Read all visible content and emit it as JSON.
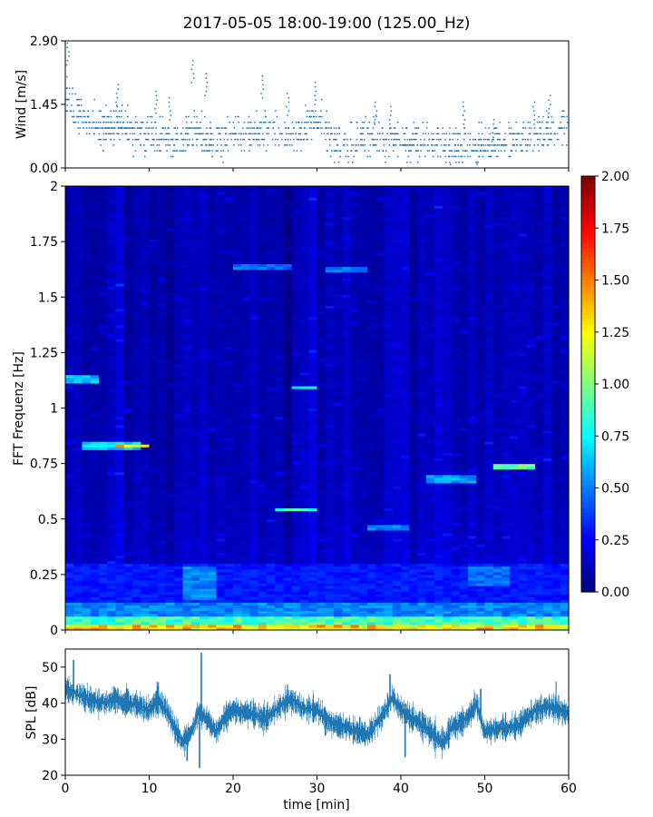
{
  "figure": {
    "title": "2017-05-05 18:00-19:00 (125.00_Hz)",
    "xlabel": "time [min]"
  },
  "chart_data": [
    {
      "type": "scatter",
      "panel": "wind",
      "title": "",
      "ylabel": "Wind [m/s]",
      "xlim": [
        0,
        60
      ],
      "ylim": [
        0,
        2.9
      ],
      "yticks": [
        "0.00",
        "1.45",
        "2.90"
      ],
      "xticks": [
        0,
        10,
        20,
        30,
        40,
        50,
        60
      ],
      "color": "#1f77b4",
      "trend": {
        "x": [
          0,
          1,
          2,
          4,
          6,
          8,
          10,
          12,
          14,
          15,
          16,
          18,
          20,
          22,
          24,
          26,
          28,
          30,
          31,
          32,
          34,
          36,
          38,
          40,
          42,
          44,
          46,
          48,
          50,
          52,
          54,
          56,
          58,
          60
        ],
        "y": [
          1.8,
          1.4,
          1.1,
          0.9,
          1.0,
          0.8,
          0.8,
          0.7,
          0.6,
          0.9,
          0.8,
          0.6,
          0.7,
          0.8,
          0.9,
          0.8,
          0.8,
          1.1,
          0.9,
          0.6,
          0.6,
          0.7,
          0.7,
          0.6,
          0.6,
          0.5,
          0.5,
          0.5,
          0.5,
          0.7,
          0.6,
          0.8,
          0.8,
          0.9
        ]
      },
      "gusts": [
        [
          0.3,
          2.85
        ],
        [
          15.2,
          2.45
        ],
        [
          16.8,
          2.15
        ],
        [
          23.5,
          2.1
        ],
        [
          29.8,
          1.95
        ],
        [
          6.2,
          1.9
        ],
        [
          10.8,
          1.75
        ],
        [
          12.5,
          1.6
        ],
        [
          26.5,
          1.7
        ],
        [
          37.0,
          1.5
        ],
        [
          38.7,
          1.4
        ],
        [
          57.7,
          1.65
        ],
        [
          55.8,
          1.5
        ],
        [
          47.5,
          1.5
        ],
        [
          51.0,
          1.1
        ]
      ]
    },
    {
      "type": "heatmap",
      "panel": "spectrogram",
      "title": "",
      "ylabel": "FFT Frequenz [Hz]",
      "xlim": [
        0,
        60
      ],
      "ylim": [
        0,
        2
      ],
      "yticks": [
        "0",
        "0.25",
        "0.5",
        "0.75",
        "1",
        "1.25",
        "1.5",
        "1.75",
        "2"
      ],
      "colormap": "jet",
      "clim": [
        0,
        2
      ],
      "colorbar_ticks": [
        "0.00",
        "0.25",
        "0.50",
        "0.75",
        "1.00",
        "1.25",
        "1.50",
        "1.75",
        "2.00"
      ],
      "features": [
        {
          "t0": 0,
          "t1": 60,
          "f0": 0.0,
          "f1": 0.02,
          "level": 1.4
        },
        {
          "t0": 0,
          "t1": 60,
          "f0": 0.02,
          "f1": 0.06,
          "level": 0.95
        },
        {
          "t0": 0,
          "t1": 60,
          "f0": 0.06,
          "f1": 0.12,
          "level": 0.55
        },
        {
          "t0": 0,
          "t1": 60,
          "f0": 0.12,
          "f1": 0.3,
          "level": 0.32
        },
        {
          "t0": 0,
          "t1": 4,
          "f0": 1.12,
          "f1": 1.14,
          "level": 0.65
        },
        {
          "t0": 2,
          "t1": 9,
          "f0": 0.82,
          "f1": 0.84,
          "level": 0.75
        },
        {
          "t0": 6,
          "t1": 9.5,
          "f0": 0.825,
          "f1": 0.835,
          "level": 1.5
        },
        {
          "t0": 25,
          "t1": 30,
          "f0": 0.54,
          "f1": 0.55,
          "level": 0.85
        },
        {
          "t0": 27,
          "t1": 30,
          "f0": 1.09,
          "f1": 1.1,
          "level": 0.75
        },
        {
          "t0": 51,
          "t1": 56,
          "f0": 0.73,
          "f1": 0.75,
          "level": 1.0
        },
        {
          "t0": 43,
          "t1": 49,
          "f0": 0.67,
          "f1": 0.69,
          "level": 0.6
        },
        {
          "t0": 14,
          "t1": 18,
          "f0": 0.15,
          "f1": 0.28,
          "level": 0.55
        },
        {
          "t0": 48,
          "t1": 53,
          "f0": 0.2,
          "f1": 0.28,
          "level": 0.5
        },
        {
          "t0": 20,
          "t1": 27,
          "f0": 1.63,
          "f1": 1.64,
          "level": 0.5
        },
        {
          "t0": 31,
          "t1": 36,
          "f0": 1.62,
          "f1": 1.63,
          "level": 0.5
        },
        {
          "t0": 36,
          "t1": 41,
          "f0": 0.46,
          "f1": 0.47,
          "level": 0.55
        }
      ]
    },
    {
      "type": "line",
      "panel": "spl",
      "title": "",
      "ylabel": "SPL [dB]",
      "xlim": [
        0,
        60
      ],
      "ylim": [
        20,
        55
      ],
      "yticks": [
        20,
        30,
        40,
        50
      ],
      "xticks": [
        0,
        10,
        20,
        30,
        40,
        50,
        60
      ],
      "color": "#1f77b4",
      "x": [
        0,
        2,
        4,
        6,
        8,
        10,
        11,
        12,
        13,
        14,
        15,
        16,
        17,
        18,
        19,
        20,
        22,
        24,
        26,
        27,
        28,
        30,
        32,
        34,
        36,
        38,
        39,
        40,
        42,
        44,
        45,
        46,
        48,
        49,
        50,
        52,
        54,
        56,
        58,
        60
      ],
      "y": [
        44,
        42,
        40,
        41,
        40,
        38,
        41,
        38,
        33,
        29,
        32,
        38,
        35,
        32,
        36,
        38,
        37,
        36,
        40,
        41,
        39,
        38,
        34,
        33,
        31,
        37,
        42,
        38,
        35,
        31,
        29,
        33,
        36,
        40,
        32,
        33,
        34,
        38,
        39,
        37
      ],
      "spread": 4.5,
      "spikes": [
        [
          16.2,
          54
        ],
        [
          16.0,
          22
        ],
        [
          38.7,
          48
        ],
        [
          31.0,
          31
        ],
        [
          40.5,
          25
        ],
        [
          49.5,
          44
        ],
        [
          14.5,
          24
        ],
        [
          58.5,
          46
        ],
        [
          1.0,
          52
        ]
      ]
    }
  ]
}
